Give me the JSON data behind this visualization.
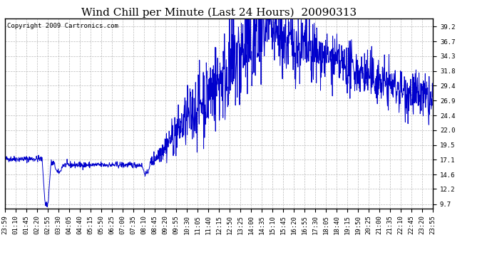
{
  "title": "Wind Chill per Minute (Last 24 Hours)  20090313",
  "copyright_text": "Copyright 2009 Cartronics.com",
  "line_color": "#0000cc",
  "background_color": "#ffffff",
  "grid_color": "#aaaaaa",
  "y_ticks": [
    9.7,
    12.2,
    14.6,
    17.1,
    19.5,
    22.0,
    24.4,
    26.9,
    29.4,
    31.8,
    34.3,
    36.7,
    39.2
  ],
  "ylim": [
    9.0,
    40.5
  ],
  "x_tick_labels": [
    "23:59",
    "01:10",
    "01:45",
    "02:20",
    "02:55",
    "03:30",
    "04:05",
    "04:40",
    "05:15",
    "05:50",
    "06:25",
    "07:00",
    "07:35",
    "08:10",
    "08:45",
    "09:20",
    "09:55",
    "10:30",
    "11:05",
    "11:40",
    "12:15",
    "12:50",
    "13:25",
    "14:00",
    "14:35",
    "15:10",
    "15:45",
    "16:20",
    "16:55",
    "17:30",
    "18:05",
    "18:40",
    "19:15",
    "19:50",
    "20:25",
    "21:00",
    "21:35",
    "22:10",
    "22:45",
    "23:20",
    "23:55"
  ],
  "title_fontsize": 11,
  "tick_fontsize": 6.5,
  "copyright_fontsize": 6.5
}
